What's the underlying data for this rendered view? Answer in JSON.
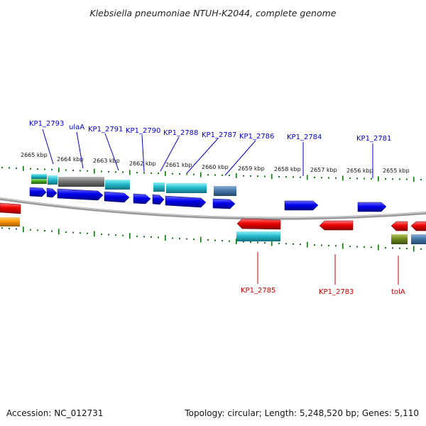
{
  "title": "Klebsiella pneumoniae NTUH-K2044, complete genome",
  "footer": {
    "accession": "Accession: NC_012731",
    "summary": "Topology: circular; Length: 5,248,520 bp; Genes: 5,110"
  },
  "colors": {
    "forward_gene": "#0000ee",
    "reverse_gene": "#ee0000",
    "rna_or_feature": "#22bbcc",
    "pseudo": "#777777",
    "steel": "#4477aa",
    "green": "#44aa22",
    "orange": "#ff9900",
    "ticks": "#117711",
    "backbone": "#888888",
    "forward_label": "#0000cc",
    "reverse_label": "#cc0000"
  },
  "coordinates": [
    "2665 kbp",
    "2664 kbp",
    "2663 kbp",
    "2662 kbp",
    "2661 kbp",
    "2660 kbp",
    "2659 kbp",
    "2658 kbp",
    "2657 kbp",
    "2656 kbp",
    "2655 kbp"
  ],
  "forward_labels": [
    "KP1_2793",
    "ulaA",
    "KP1_2791",
    "KP1_2790",
    "KP1_2788",
    "KP1_2787",
    "KP1_2786",
    "KP1_2784",
    "KP1_2781"
  ],
  "reverse_labels": [
    "KP1_2785",
    "KP1_2783",
    "tolA"
  ]
}
